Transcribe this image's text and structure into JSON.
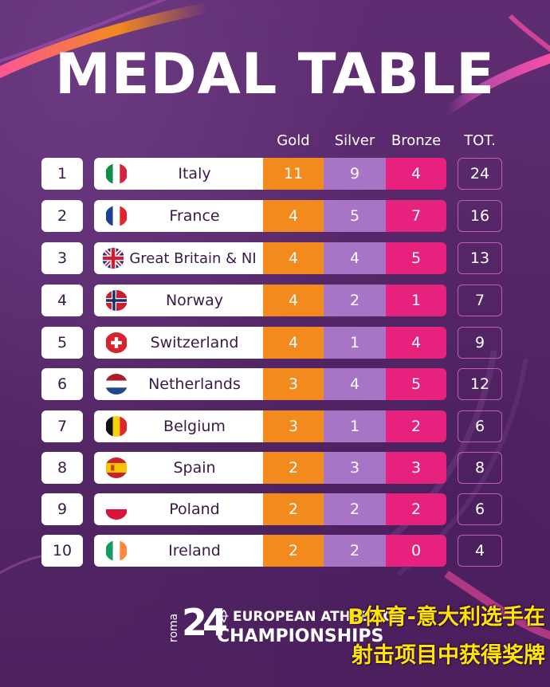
{
  "title": "MEDAL TABLE",
  "headers": {
    "gold": "Gold",
    "silver": "Silver",
    "bronze": "Bronze",
    "total": "TOT."
  },
  "rows": [
    {
      "rank": "1",
      "country": "Italy",
      "flag": "italy-flag-icon",
      "gold": "11",
      "silver": "9",
      "bronze": "4",
      "total": "24"
    },
    {
      "rank": "2",
      "country": "France",
      "flag": "france-flag-icon",
      "gold": "4",
      "silver": "5",
      "bronze": "7",
      "total": "16"
    },
    {
      "rank": "3",
      "country": "Great Britain & NI",
      "flag": "uk-flag-icon",
      "gold": "4",
      "silver": "4",
      "bronze": "5",
      "total": "13"
    },
    {
      "rank": "4",
      "country": "Norway",
      "flag": "norway-flag-icon",
      "gold": "4",
      "silver": "2",
      "bronze": "1",
      "total": "7"
    },
    {
      "rank": "5",
      "country": "Switzerland",
      "flag": "switzerland-flag-icon",
      "gold": "4",
      "silver": "1",
      "bronze": "4",
      "total": "9"
    },
    {
      "rank": "6",
      "country": "Netherlands",
      "flag": "netherlands-flag-icon",
      "gold": "3",
      "silver": "4",
      "bronze": "5",
      "total": "12"
    },
    {
      "rank": "7",
      "country": "Belgium",
      "flag": "belgium-flag-icon",
      "gold": "3",
      "silver": "1",
      "bronze": "2",
      "total": "6"
    },
    {
      "rank": "8",
      "country": "Spain",
      "flag": "spain-flag-icon",
      "gold": "2",
      "silver": "3",
      "bronze": "3",
      "total": "8"
    },
    {
      "rank": "9",
      "country": "Poland",
      "flag": "poland-flag-icon",
      "gold": "2",
      "silver": "2",
      "bronze": "2",
      "total": "6"
    },
    {
      "rank": "10",
      "country": "Ireland",
      "flag": "ireland-flag-icon",
      "gold": "2",
      "silver": "2",
      "bronze": "0",
      "total": "4"
    }
  ],
  "logo": {
    "city": "roma",
    "year": "24",
    "line1": "EUROPEAN ATHLETICS",
    "line2": "CHAMPIONSHIPS"
  },
  "watermark": {
    "line1": "B体育-意大利选手在",
    "line2": "射击项目中获得奖牌"
  },
  "colors": {
    "background": "#5a2a6b",
    "gold": "#f28a1d",
    "silver": "#a874c6",
    "bronze": "#e6217e",
    "total_border": "#c65ab3",
    "watermark": "#ffe500"
  }
}
